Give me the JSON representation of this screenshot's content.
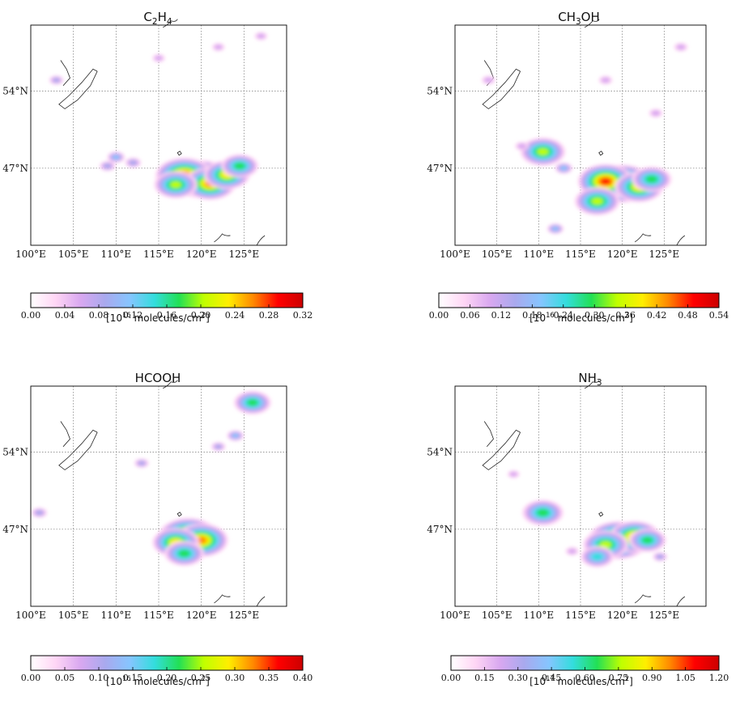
{
  "colors": {
    "scale": [
      "#ffffff",
      "#ffd6f5",
      "#d9a8f0",
      "#a9a9ee",
      "#86c5ff",
      "#33dddd",
      "#22e055",
      "#c0ff00",
      "#ffee00",
      "#ff8800",
      "#ff0000",
      "#cc0000"
    ]
  },
  "map": {
    "lon_labels": [
      "100°E",
      "105°E",
      "110°E",
      "115°E",
      "120°E",
      "125°E"
    ],
    "lat_labels": [
      "54°N",
      "47°N"
    ]
  },
  "chart_data": [
    {
      "type": "heatmap",
      "title": "C2H4",
      "title_main": "C",
      "title_sub1": "2",
      "title_mid": "H",
      "title_sub2": "4",
      "title_end": "",
      "units": "[10¹⁶ molecules/cm²]",
      "units_exp": "16",
      "colorbar_ticks": [
        "0.00",
        "0.04",
        "0.08",
        "0.12",
        "0.16",
        "0.20",
        "0.24",
        "0.28",
        "0.32"
      ],
      "colorbar_range": [
        0,
        0.32
      ],
      "xlim": [
        100,
        130
      ],
      "ylim": [
        40,
        60
      ],
      "hotspots": [
        {
          "lon": 120,
          "lat": 46.0,
          "value": 0.32
        },
        {
          "lon": 118,
          "lat": 46.3,
          "value": 0.3
        },
        {
          "lon": 121,
          "lat": 45.6,
          "value": 0.26
        },
        {
          "lon": 123,
          "lat": 46.4,
          "value": 0.22
        },
        {
          "lon": 117,
          "lat": 45.5,
          "value": 0.2
        },
        {
          "lon": 124.5,
          "lat": 47.2,
          "value": 0.16
        },
        {
          "lon": 110,
          "lat": 48.0,
          "value": 0.12
        },
        {
          "lon": 112,
          "lat": 47.5,
          "value": 0.1
        },
        {
          "lon": 109,
          "lat": 47.2,
          "value": 0.1
        },
        {
          "lon": 103,
          "lat": 55.0,
          "value": 0.08
        },
        {
          "lon": 115,
          "lat": 57.0,
          "value": 0.06
        },
        {
          "lon": 122,
          "lat": 58.0,
          "value": 0.06
        },
        {
          "lon": 127,
          "lat": 59.0,
          "value": 0.06
        }
      ]
    },
    {
      "type": "heatmap",
      "title": "CH3OH",
      "title_main": "CH",
      "title_sub1": "3",
      "title_mid": "OH",
      "title_sub2": "",
      "title_end": "",
      "units": "[10¹⁶ molecules/cm²]",
      "units_exp": "16",
      "colorbar_ticks": [
        "0.00",
        "0.06",
        "0.12",
        "0.18",
        "0.24",
        "0.30",
        "0.36",
        "0.42",
        "0.48",
        "0.54"
      ],
      "colorbar_range": [
        0,
        0.54
      ],
      "xlim": [
        100,
        130
      ],
      "ylim": [
        40,
        60
      ],
      "hotspots": [
        {
          "lon": 120,
          "lat": 45.6,
          "value": 0.54
        },
        {
          "lon": 118,
          "lat": 45.8,
          "value": 0.48
        },
        {
          "lon": 122,
          "lat": 45.3,
          "value": 0.4
        },
        {
          "lon": 117,
          "lat": 44.0,
          "value": 0.36
        },
        {
          "lon": 123.5,
          "lat": 46.0,
          "value": 0.3
        },
        {
          "lon": 110.5,
          "lat": 48.5,
          "value": 0.36
        },
        {
          "lon": 113,
          "lat": 47.0,
          "value": 0.2
        },
        {
          "lon": 108,
          "lat": 49.0,
          "value": 0.12
        },
        {
          "lon": 104,
          "lat": 55.0,
          "value": 0.12
        },
        {
          "lon": 118,
          "lat": 55.0,
          "value": 0.12
        },
        {
          "lon": 124,
          "lat": 52.0,
          "value": 0.12
        },
        {
          "lon": 127,
          "lat": 58.0,
          "value": 0.12
        },
        {
          "lon": 112,
          "lat": 41.5,
          "value": 0.18
        }
      ]
    },
    {
      "type": "heatmap",
      "title": "HCOOH",
      "title_main": "HCOOH",
      "title_sub1": "",
      "title_mid": "",
      "title_sub2": "",
      "title_end": "",
      "units": "[10¹⁶ molecules/cm²]",
      "units_exp": "16",
      "colorbar_ticks": [
        "0.00",
        "0.05",
        "0.10",
        "0.15",
        "0.20",
        "0.25",
        "0.30",
        "0.35",
        "0.40"
      ],
      "colorbar_range": [
        0,
        0.4
      ],
      "xlim": [
        100,
        130
      ],
      "ylim": [
        40,
        60
      ],
      "hotspots": [
        {
          "lon": 118.5,
          "lat": 46.3,
          "value": 0.4
        },
        {
          "lon": 120,
          "lat": 46.0,
          "value": 0.34
        },
        {
          "lon": 117,
          "lat": 45.8,
          "value": 0.28
        },
        {
          "lon": 118,
          "lat": 44.8,
          "value": 0.22
        },
        {
          "lon": 126,
          "lat": 58.5,
          "value": 0.2
        },
        {
          "lon": 124,
          "lat": 55.5,
          "value": 0.14
        },
        {
          "lon": 101,
          "lat": 48.5,
          "value": 0.12
        },
        {
          "lon": 113,
          "lat": 53.0,
          "value": 0.1
        },
        {
          "lon": 122,
          "lat": 54.5,
          "value": 0.1
        }
      ]
    },
    {
      "type": "heatmap",
      "title": "NH3",
      "title_main": "NH",
      "title_sub1": "3",
      "title_mid": "",
      "title_sub2": "",
      "title_end": "",
      "units": "[10¹⁷ molecules/cm²]",
      "units_exp": "17",
      "colorbar_ticks": [
        "0.00",
        "0.15",
        "0.30",
        "0.45",
        "0.60",
        "0.75",
        "0.90",
        "1.05",
        "1.20"
      ],
      "colorbar_range": [
        0,
        1.2
      ],
      "xlim": [
        100,
        130
      ],
      "ylim": [
        40,
        60
      ],
      "hotspots": [
        {
          "lon": 119.5,
          "lat": 46.0,
          "value": 1.2
        },
        {
          "lon": 121.5,
          "lat": 46.3,
          "value": 0.95
        },
        {
          "lon": 118,
          "lat": 45.6,
          "value": 0.8
        },
        {
          "lon": 123,
          "lat": 46.0,
          "value": 0.6
        },
        {
          "lon": 117,
          "lat": 44.5,
          "value": 0.5
        },
        {
          "lon": 110.5,
          "lat": 48.5,
          "value": 0.7
        },
        {
          "lon": 124.5,
          "lat": 44.5,
          "value": 0.3
        },
        {
          "lon": 114,
          "lat": 45.0,
          "value": 0.25
        },
        {
          "lon": 107,
          "lat": 52.0,
          "value": 0.2
        }
      ]
    }
  ]
}
